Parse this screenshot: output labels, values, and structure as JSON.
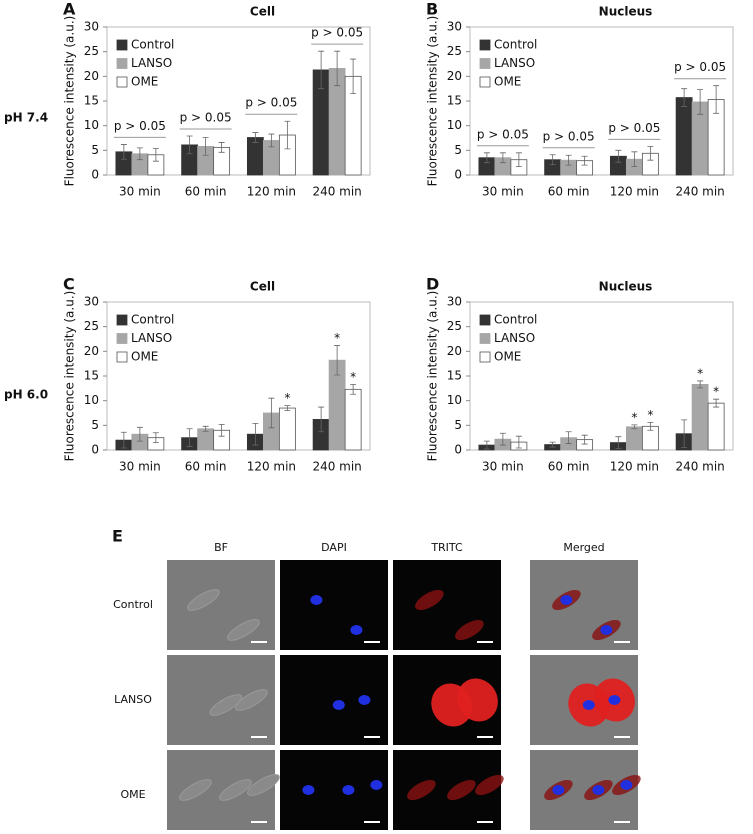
{
  "chart_data": [
    {
      "type": "bar",
      "label": "A",
      "title": "Cell",
      "ylabel": "Fluorescence intensity (a.u.)",
      "categories": [
        "30 min",
        "60 min",
        "120 min",
        "240 min"
      ],
      "ylim": [
        0,
        30
      ],
      "yticks": [
        0,
        5,
        10,
        15,
        20,
        25,
        30
      ],
      "legend": "upper left",
      "annotations": [
        "p > 0.05",
        "p > 0.05",
        "p > 0.05",
        "p > 0.05"
      ],
      "series": [
        {
          "name": "Control",
          "color": "#333333",
          "values": [
            4.7,
            6.1,
            7.6,
            21.3
          ],
          "errors": [
            1.5,
            1.8,
            1.0,
            3.8
          ]
        },
        {
          "name": "LANSO",
          "color": "#a6a6a6",
          "values": [
            4.3,
            5.8,
            7.0,
            21.6
          ],
          "errors": [
            1.2,
            1.8,
            1.3,
            3.5
          ]
        },
        {
          "name": "OME",
          "color": "#ffffff",
          "values": [
            4.1,
            5.6,
            8.1,
            20.0
          ],
          "errors": [
            1.3,
            1.0,
            2.8,
            3.5
          ]
        }
      ]
    },
    {
      "type": "bar",
      "label": "B",
      "title": "Nucleus",
      "ylabel": "Fluorescence intensity (a.u.)",
      "categories": [
        "30 min",
        "60 min",
        "120 min",
        "240 min"
      ],
      "ylim": [
        0,
        30
      ],
      "yticks": [
        0,
        5,
        10,
        15,
        20,
        25,
        30
      ],
      "legend": "upper left",
      "annotations": [
        "p > 0.05",
        "p > 0.05",
        "p > 0.05",
        "p > 0.05"
      ],
      "series": [
        {
          "name": "Control",
          "color": "#333333",
          "values": [
            3.5,
            3.1,
            3.8,
            15.7
          ],
          "errors": [
            1.0,
            1.0,
            1.2,
            1.8
          ]
        },
        {
          "name": "LANSO",
          "color": "#a6a6a6",
          "values": [
            3.5,
            3.0,
            3.2,
            14.8
          ],
          "errors": [
            1.0,
            1.0,
            1.5,
            2.5
          ]
        },
        {
          "name": "OME",
          "color": "#ffffff",
          "values": [
            3.1,
            2.9,
            4.4,
            15.3
          ],
          "errors": [
            1.4,
            0.9,
            1.4,
            2.8
          ]
        }
      ]
    },
    {
      "type": "bar",
      "label": "C",
      "title": "Cell",
      "ylabel": "Fluorescence intensity (a.u.)",
      "categories": [
        "30 min",
        "60 min",
        "120 min",
        "240 min"
      ],
      "ylim": [
        0,
        30
      ],
      "yticks": [
        0,
        5,
        10,
        15,
        20,
        25,
        30
      ],
      "legend": "upper left",
      "series": [
        {
          "name": "Control",
          "color": "#333333",
          "values": [
            2.0,
            2.5,
            3.2,
            6.2
          ],
          "errors": [
            1.6,
            1.8,
            2.2,
            2.5
          ]
        },
        {
          "name": "LANSO",
          "color": "#a6a6a6",
          "values": [
            3.2,
            4.3,
            7.5,
            18.2
          ],
          "errors": [
            1.4,
            0.5,
            3.0,
            3.0
          ],
          "significance": [
            null,
            null,
            null,
            "*"
          ]
        },
        {
          "name": "OME",
          "color": "#ffffff",
          "values": [
            2.5,
            4.0,
            8.5,
            12.3
          ],
          "errors": [
            1.0,
            1.2,
            0.5,
            1.0
          ],
          "significance": [
            null,
            null,
            "*",
            "*"
          ]
        }
      ]
    },
    {
      "type": "bar",
      "label": "D",
      "title": "Nucleus",
      "ylabel": "Fluorescence intensity (a.u.)",
      "categories": [
        "30 min",
        "60 min",
        "120 min",
        "240 min"
      ],
      "ylim": [
        0,
        30
      ],
      "yticks": [
        0,
        5,
        10,
        15,
        20,
        25,
        30
      ],
      "legend": "upper left",
      "series": [
        {
          "name": "Control",
          "color": "#333333",
          "values": [
            1.0,
            1.1,
            1.5,
            3.3
          ],
          "errors": [
            0.8,
            0.5,
            1.2,
            2.8
          ]
        },
        {
          "name": "LANSO",
          "color": "#a6a6a6",
          "values": [
            2.2,
            2.5,
            4.7,
            13.3
          ],
          "errors": [
            1.2,
            1.2,
            0.4,
            0.7
          ],
          "significance": [
            null,
            null,
            "*",
            "*"
          ]
        },
        {
          "name": "OME",
          "color": "#ffffff",
          "values": [
            1.6,
            2.1,
            4.8,
            9.5
          ],
          "errors": [
            1.2,
            0.9,
            0.8,
            0.8
          ],
          "significance": [
            null,
            null,
            "*",
            "*"
          ]
        }
      ]
    }
  ],
  "row_labels": [
    "pH 7.4",
    "pH 6.0"
  ],
  "images": {
    "label": "E",
    "columns": [
      "BF",
      "DAPI",
      "TRITC",
      "Merged"
    ],
    "rows": [
      "Control",
      "LANSO",
      "OME"
    ]
  }
}
